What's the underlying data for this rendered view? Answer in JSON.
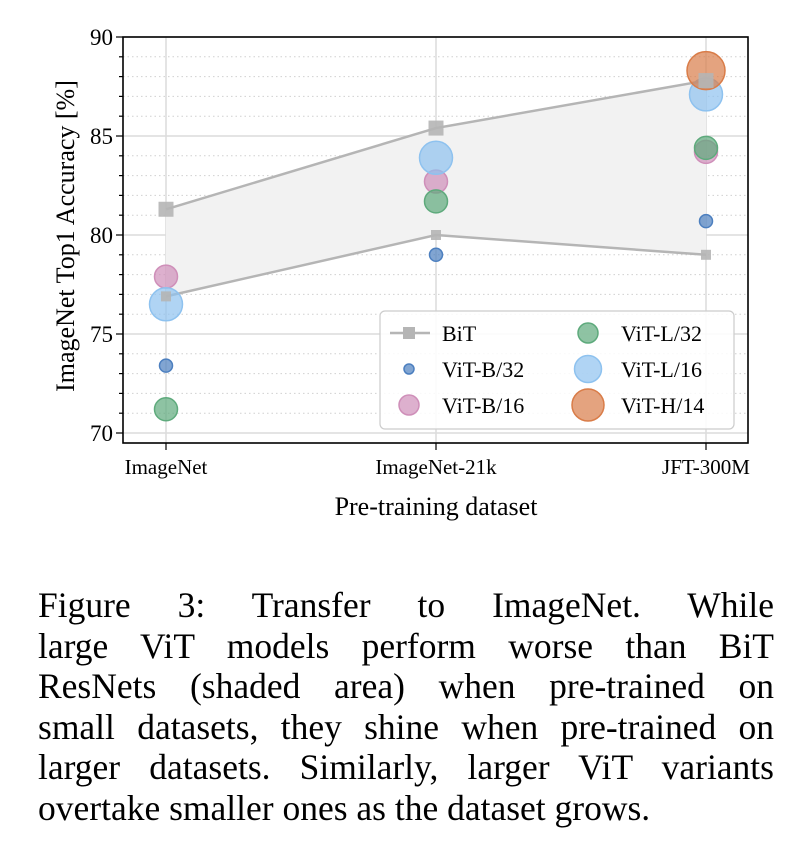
{
  "chart_data": {
    "type": "scatter",
    "title": "",
    "xlabel": "Pre-training dataset",
    "ylabel": "ImageNet Top1 Accuracy [%]",
    "categories": [
      "ImageNet",
      "ImageNet-21k",
      "JFT-300M"
    ],
    "ylim": [
      69.5,
      90
    ],
    "yticks": [
      70,
      75,
      80,
      85,
      90
    ],
    "ytick_labels": [
      "70",
      "75",
      "80",
      "85",
      "90"
    ],
    "minor_ytick_step": 1,
    "grid": true,
    "legend_position": "bottom-right",
    "bit": {
      "name": "BiT",
      "color": "#b5b5b5",
      "upper": [
        81.3,
        85.4,
        87.8
      ],
      "lower": [
        76.9,
        80.0,
        79.0
      ],
      "shade_color": "#f2f2f2"
    },
    "series": [
      {
        "name": "ViT-B/32",
        "color": "#4c7fbf",
        "size": "xs",
        "values": [
          73.4,
          79.0,
          80.7
        ]
      },
      {
        "name": "ViT-B/16",
        "color": "#cf8fb9",
        "size": "s",
        "values": [
          77.9,
          82.7,
          84.2
        ]
      },
      {
        "name": "ViT-L/32",
        "color": "#5eaa7c",
        "size": "m",
        "values": [
          71.2,
          81.7,
          84.4
        ]
      },
      {
        "name": "ViT-L/16",
        "color": "#8ec2ef",
        "size": "l",
        "values": [
          76.5,
          83.9,
          87.1
        ]
      },
      {
        "name": "ViT-H/14",
        "color": "#d97c48",
        "size": "xl",
        "values": [
          null,
          null,
          88.3
        ]
      }
    ],
    "legend": [
      {
        "label": "BiT",
        "marker": "line-square"
      },
      {
        "label": "ViT-B/32",
        "marker": "circle"
      },
      {
        "label": "ViT-B/16",
        "marker": "circle"
      },
      {
        "label": "ViT-L/32",
        "marker": "circle"
      },
      {
        "label": "ViT-L/16",
        "marker": "circle"
      },
      {
        "label": "ViT-H/14",
        "marker": "circle"
      }
    ]
  },
  "caption": {
    "lines": [
      "Figure 3:  Transfer to ImageNet.  While",
      "large ViT models perform worse than BiT",
      "ResNets (shaded area) when pre-trained on",
      "small datasets, they shine when pre-trained on",
      "larger datasets.  Similarly, larger ViT variants",
      "overtake smaller ones as the dataset grows."
    ]
  }
}
